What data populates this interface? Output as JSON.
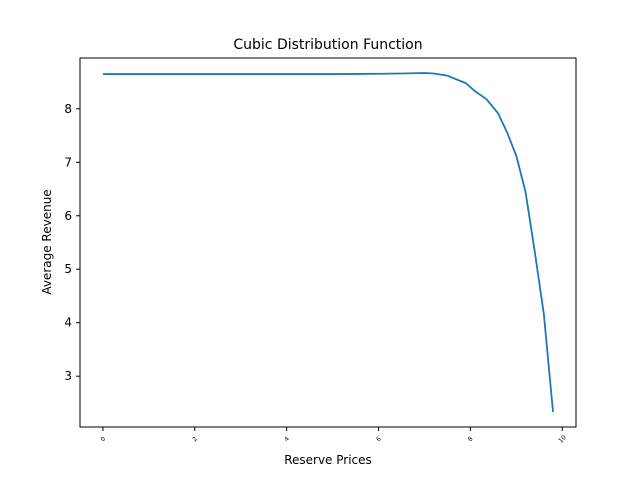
{
  "chart_data": {
    "type": "line",
    "title": "Cubic Distribution Function",
    "xlabel": "Reserve Prices",
    "ylabel": "Average Revenue",
    "xlim": [
      -0.5,
      10.3
    ],
    "ylim": [
      2.05,
      8.95
    ],
    "xticks": [
      0,
      2,
      4,
      6,
      8,
      10
    ],
    "yticks": [
      3,
      4,
      5,
      6,
      7,
      8
    ],
    "grid": false,
    "color": "#1f77b4",
    "series": [
      {
        "x": [
          0,
          0.5,
          1,
          1.5,
          2,
          2.5,
          3,
          3.5,
          4,
          4.5,
          5,
          5.5,
          6,
          6.5,
          7,
          7.2,
          7.5,
          7.9,
          8.1,
          8.35,
          8.6,
          8.8,
          9.0,
          9.2,
          9.4,
          9.6,
          9.8
        ],
        "y": [
          8.65,
          8.65,
          8.65,
          8.65,
          8.65,
          8.65,
          8.65,
          8.65,
          8.65,
          8.65,
          8.65,
          8.652,
          8.655,
          8.66,
          8.67,
          8.66,
          8.62,
          8.48,
          8.33,
          8.18,
          7.92,
          7.56,
          7.12,
          6.45,
          5.34,
          4.16,
          2.33
        ]
      }
    ]
  }
}
